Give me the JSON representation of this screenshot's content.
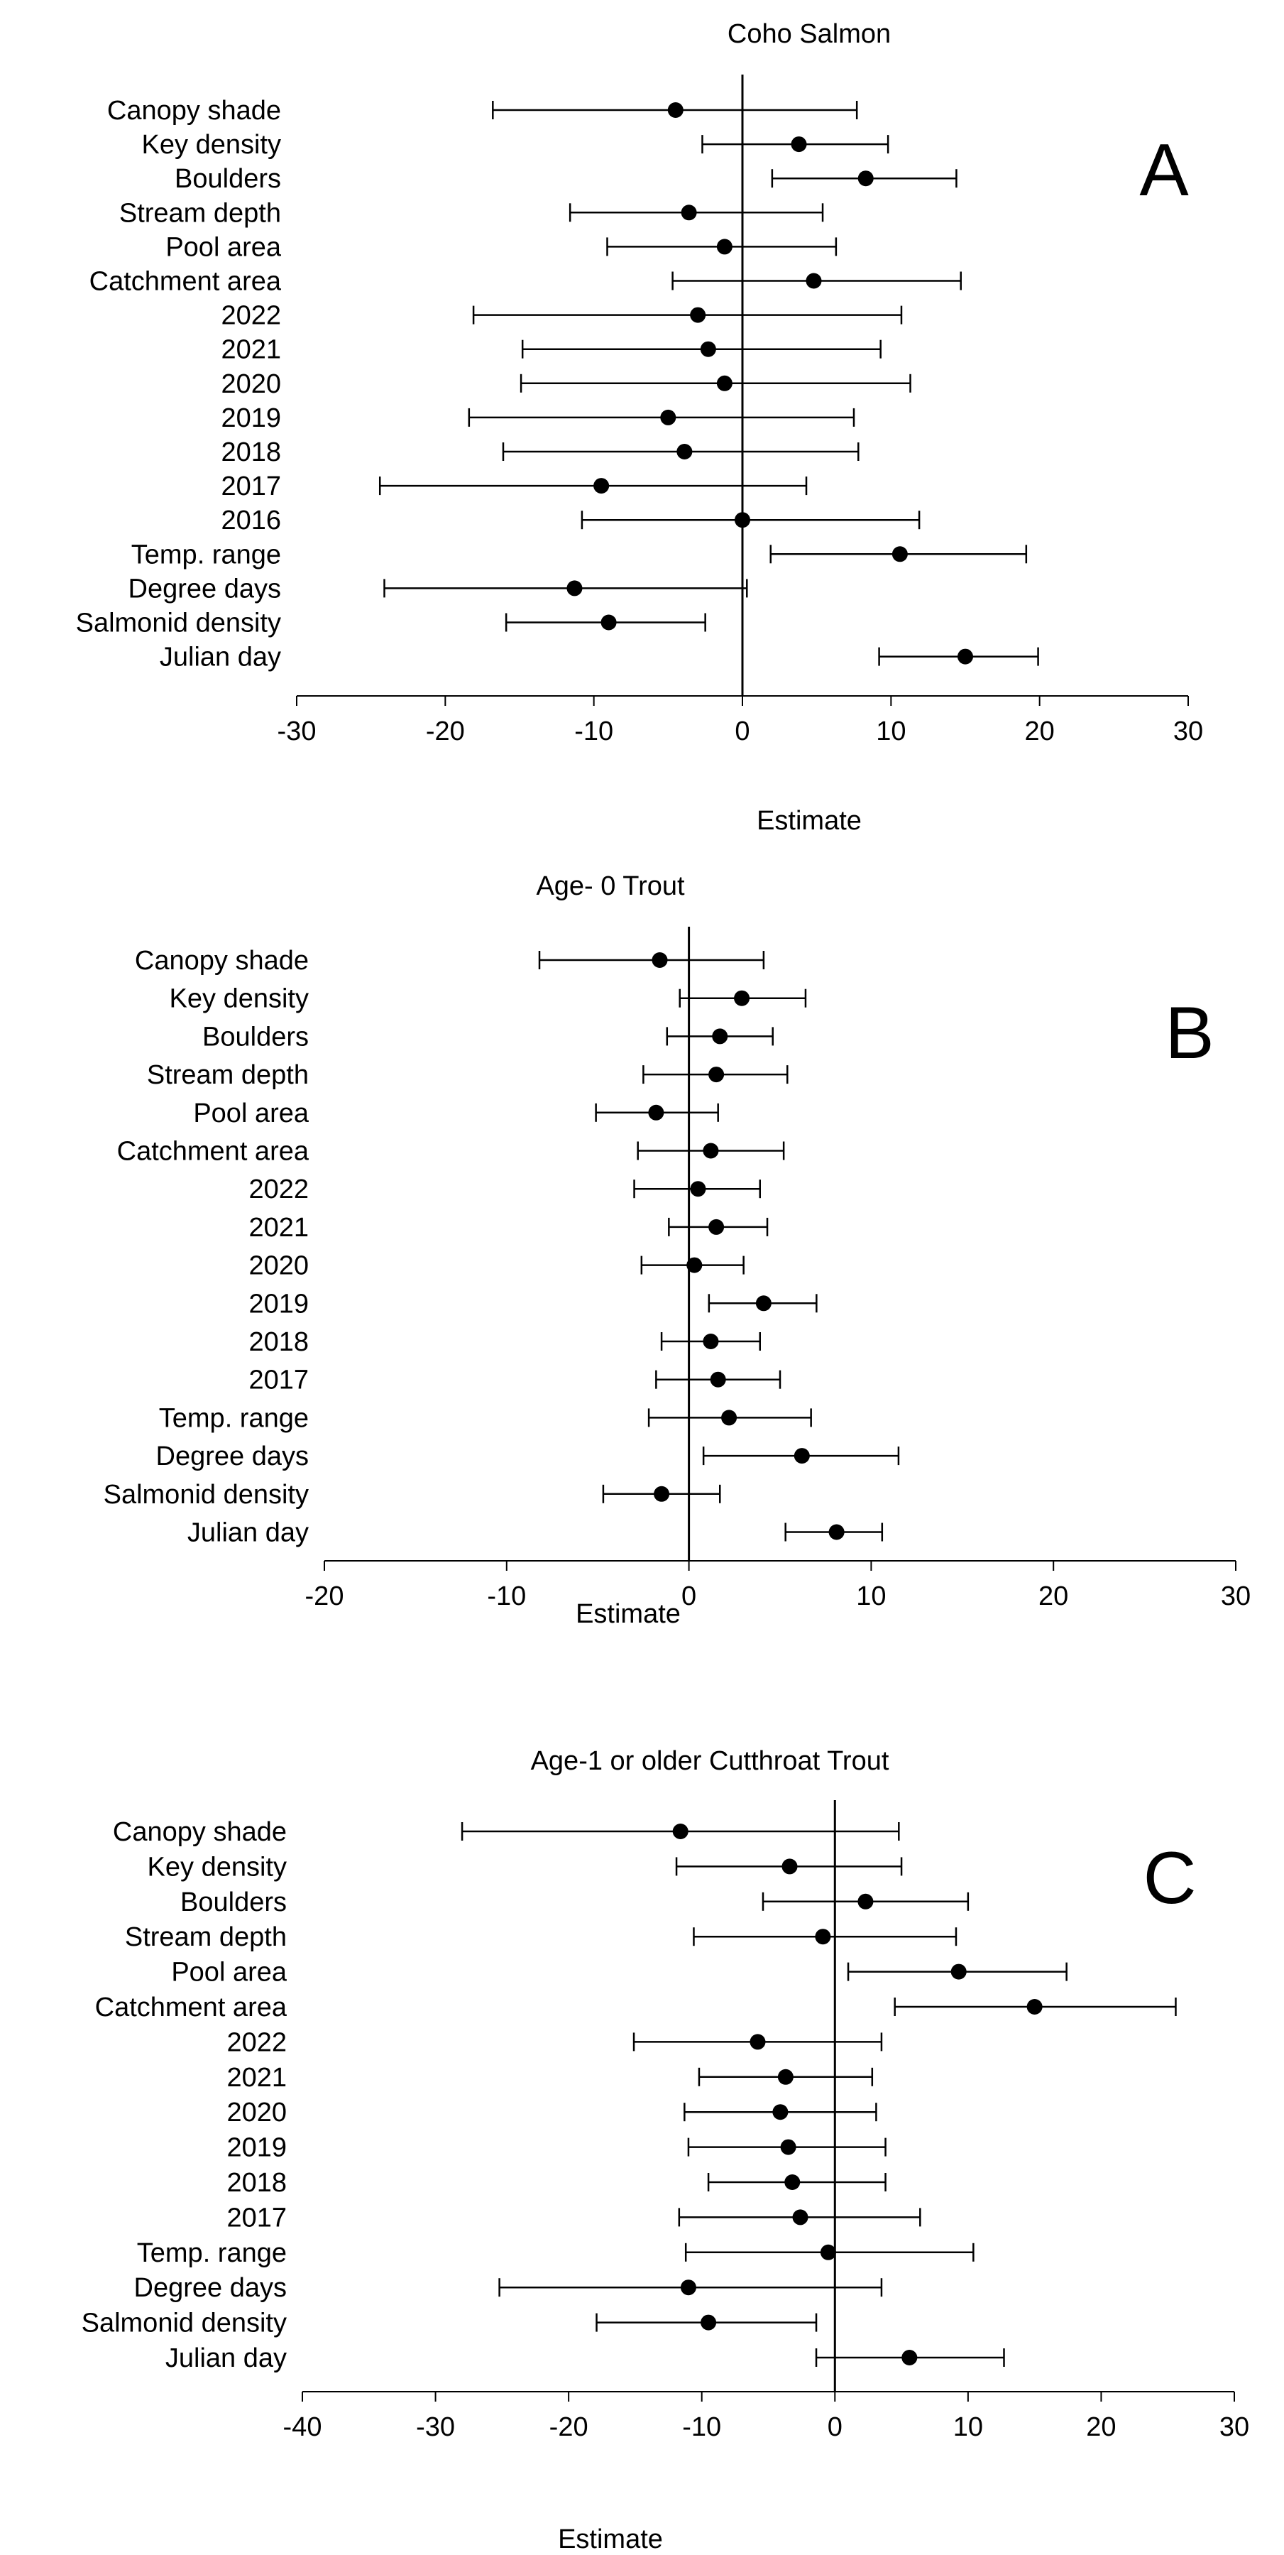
{
  "chart_data": [
    {
      "type": "forest",
      "title": "Coho Salmon",
      "panel_label": "A",
      "xlabel": "Estimate",
      "xlim": [
        -30,
        30
      ],
      "xticks": [
        -30,
        -20,
        -10,
        0,
        10,
        20,
        30
      ],
      "categories": [
        "Canopy shade",
        "Key density",
        "Boulders",
        "Stream depth",
        "Pool area",
        "Catchment area",
        "2022",
        "2021",
        "2020",
        "2019",
        "2018",
        "2017",
        "2016",
        "Temp. range",
        "Degree days",
        "Salmonid density",
        "Julian day"
      ],
      "estimates": [
        -4.5,
        3.8,
        8.3,
        -3.6,
        -1.2,
        4.8,
        -3.0,
        -2.3,
        -1.2,
        -5.0,
        -3.9,
        -9.5,
        0.0,
        10.6,
        -11.3,
        -9.0,
        15.0
      ],
      "lower": [
        -16.8,
        -2.7,
        2.0,
        -11.6,
        -9.1,
        -4.7,
        -18.1,
        -14.8,
        -14.9,
        -18.4,
        -16.1,
        -24.4,
        -10.8,
        1.9,
        -24.1,
        -15.9,
        9.2
      ],
      "upper": [
        7.7,
        9.8,
        14.4,
        5.4,
        6.3,
        14.7,
        10.7,
        9.3,
        11.3,
        7.5,
        7.8,
        4.3,
        11.9,
        19.1,
        0.3,
        -2.5,
        19.9
      ]
    },
    {
      "type": "forest",
      "title": "Age- 0 Trout",
      "panel_label": "B",
      "xlabel": "Estimate",
      "xlim": [
        -20,
        30
      ],
      "xticks": [
        -20,
        -10,
        0,
        10,
        20,
        30
      ],
      "categories": [
        "Canopy shade",
        "Key density",
        "Boulders",
        "Stream depth",
        "Pool area",
        "Catchment area",
        "2022",
        "2021",
        "2020",
        "2019",
        "2018",
        "2017",
        "Temp. range",
        "Degree days",
        "Salmonid density",
        "Julian day"
      ],
      "estimates": [
        -1.6,
        2.9,
        1.7,
        1.5,
        -1.8,
        1.2,
        0.5,
        1.5,
        0.3,
        4.1,
        1.2,
        1.6,
        2.2,
        6.2,
        -1.5,
        8.1
      ],
      "lower": [
        -8.2,
        -0.5,
        -1.2,
        -2.5,
        -5.1,
        -2.8,
        -3.0,
        -1.1,
        -2.6,
        1.1,
        -1.5,
        -1.8,
        -2.2,
        0.8,
        -4.7,
        5.3
      ],
      "upper": [
        4.1,
        6.4,
        4.6,
        5.4,
        1.6,
        5.2,
        3.9,
        4.3,
        3.0,
        7.0,
        3.9,
        5.0,
        6.7,
        11.5,
        1.7,
        10.6
      ]
    },
    {
      "type": "forest",
      "title": "Age-1 or older Cutthroat Trout",
      "panel_label": "C",
      "xlabel": "Estimate",
      "xlim": [
        -40,
        30
      ],
      "xticks": [
        -40,
        -30,
        -20,
        -10,
        0,
        10,
        20,
        30
      ],
      "categories": [
        "Canopy shade",
        "Key density",
        "Boulders",
        "Stream depth",
        "Pool area",
        "Catchment area",
        "2022",
        "2021",
        "2020",
        "2019",
        "2018",
        "2017",
        "Temp. range",
        "Degree days",
        "Salmonid density",
        "Julian day"
      ],
      "estimates": [
        -11.6,
        -3.4,
        2.3,
        -0.9,
        9.3,
        15.0,
        -5.8,
        -3.7,
        -4.1,
        -3.5,
        -3.2,
        -2.6,
        -0.5,
        -11.0,
        -9.5,
        5.6
      ],
      "lower": [
        -28.0,
        -11.9,
        -5.4,
        -10.6,
        1.0,
        4.5,
        -15.1,
        -10.2,
        -11.3,
        -11.0,
        -9.5,
        -11.7,
        -11.2,
        -25.2,
        -17.9,
        -1.4
      ],
      "upper": [
        4.8,
        5.0,
        10.0,
        9.1,
        17.4,
        25.6,
        3.5,
        2.8,
        3.1,
        3.8,
        3.8,
        6.4,
        10.4,
        3.5,
        -1.4,
        12.7
      ]
    }
  ]
}
